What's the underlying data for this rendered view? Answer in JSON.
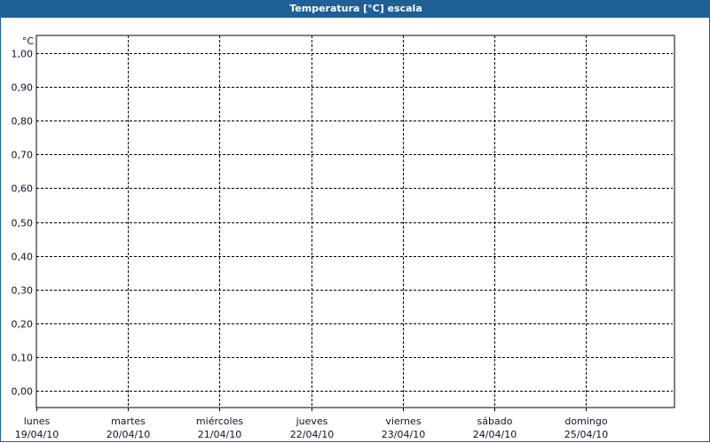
{
  "window": {
    "title": "Temperatura [°C] escala"
  },
  "colors": {
    "titlebar": "#1e5f96",
    "grid": "#000000",
    "text": "#101030"
  },
  "chart_data": {
    "type": "line",
    "title": "Temperatura [°C] escala",
    "ylabel": "°C",
    "ylim": [
      0,
      1
    ],
    "yticks": [
      "0,00",
      "0,10",
      "0,20",
      "0,30",
      "0,40",
      "0,50",
      "0,60",
      "0,70",
      "0,80",
      "0,90",
      "1,00"
    ],
    "xticks": [
      {
        "day": "lunes",
        "date": "19/04/10"
      },
      {
        "day": "martes",
        "date": "20/04/10"
      },
      {
        "day": "miércoles",
        "date": "21/04/10"
      },
      {
        "day": "jueves",
        "date": "22/04/10"
      },
      {
        "day": "viernes",
        "date": "23/04/10"
      },
      {
        "day": "sábado",
        "date": "24/04/10"
      },
      {
        "day": "domingo",
        "date": "25/04/10"
      }
    ],
    "grid": true,
    "grid_style": "dashed",
    "series": []
  }
}
